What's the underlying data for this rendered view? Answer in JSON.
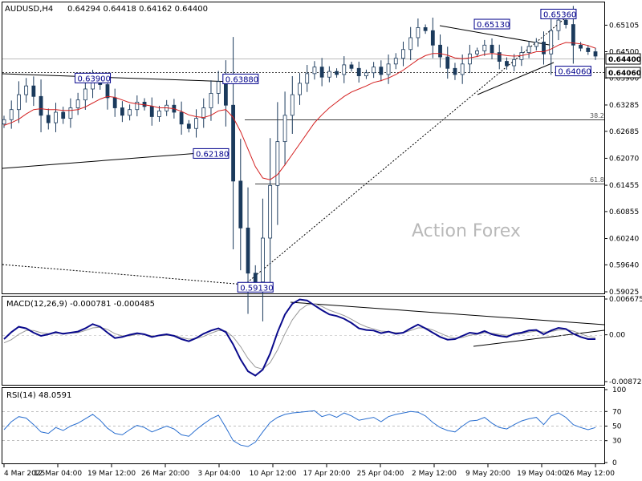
{
  "header": {
    "symbol": "AUDUSD,H4",
    "ohlc": "0.64294 0.64418 0.64162 0.64400"
  },
  "watermark": "Action Forex",
  "colors": {
    "candle": "#1b3a5c",
    "ma": "#d42020",
    "macd_main": "#0a0a8c",
    "macd_signal": "#9a9a9a",
    "rsi": "#2a6fd0",
    "trendline": "#000000",
    "fib": "#000000",
    "label_border": "#00008b"
  },
  "chart_data": [
    {
      "type": "line",
      "panel": "price",
      "title": "AUDUSD,H4",
      "ylim": [
        0.59025,
        0.6535
      ],
      "yticks": [
        "0.65105",
        "0.64500",
        "0.63900",
        "0.63285",
        "0.62685",
        "0.62070",
        "0.61455",
        "0.60855",
        "0.60240",
        "0.59640",
        "0.59025"
      ],
      "xticks": [
        "4 Mar 2025",
        "12 Mar 04:00",
        "19 Mar 12:00",
        "26 Mar 20:00",
        "3 Apr 04:00",
        "10 Apr 12:00",
        "17 Apr 20:00",
        "25 Apr 04:00",
        "2 May 12:00",
        "9 May 20:00",
        "19 May 04:00",
        "26 May 12:00"
      ],
      "series": [
        {
          "role": "close",
          "values": [
            0.6295,
            0.6318,
            0.6352,
            0.6372,
            0.6348,
            0.6305,
            0.6288,
            0.6312,
            0.6298,
            0.6322,
            0.634,
            0.6365,
            0.6388,
            0.6375,
            0.6345,
            0.6322,
            0.6305,
            0.6318,
            0.6335,
            0.6325,
            0.6302,
            0.6315,
            0.6328,
            0.6312,
            0.6285,
            0.6275,
            0.6298,
            0.6322,
            0.6355,
            0.6382,
            0.6328,
            0.6155,
            0.6048,
            0.5945,
            0.5925,
            0.6025,
            0.6145,
            0.6245,
            0.6305,
            0.6352,
            0.6378,
            0.64,
            0.6415,
            0.6392,
            0.6405,
            0.6398,
            0.642,
            0.6412,
            0.6395,
            0.6402,
            0.6415,
            0.6398,
            0.6422,
            0.6435,
            0.6455,
            0.6482,
            0.6505,
            0.6498,
            0.6465,
            0.6438,
            0.6412,
            0.6398,
            0.6422,
            0.6445,
            0.6452,
            0.6465,
            0.6448,
            0.6428,
            0.6418,
            0.6432,
            0.6448,
            0.6462,
            0.6472,
            0.6445,
            0.6498,
            0.6522,
            0.6512,
            0.6465,
            0.6458,
            0.645,
            0.644
          ]
        },
        {
          "role": "moving-average",
          "values": [
            0.6282,
            0.6288,
            0.6296,
            0.6308,
            0.6318,
            0.632,
            0.6318,
            0.6318,
            0.6316,
            0.6316,
            0.6318,
            0.6324,
            0.6333,
            0.6342,
            0.6348,
            0.6346,
            0.634,
            0.6334,
            0.6331,
            0.6329,
            0.6326,
            0.6322,
            0.6322,
            0.632,
            0.6314,
            0.6306,
            0.6302,
            0.63,
            0.6305,
            0.6315,
            0.6318,
            0.63,
            0.6268,
            0.6228,
            0.6188,
            0.6162,
            0.6158,
            0.617,
            0.6192,
            0.6216,
            0.624,
            0.6264,
            0.6288,
            0.6306,
            0.6322,
            0.6335,
            0.6348,
            0.6358,
            0.6365,
            0.6372,
            0.638,
            0.6384,
            0.639,
            0.6398,
            0.6408,
            0.642,
            0.6432,
            0.6441,
            0.6446,
            0.6446,
            0.6442,
            0.6436,
            0.6434,
            0.6436,
            0.6439,
            0.6444,
            0.6446,
            0.6444,
            0.6441,
            0.644,
            0.6441,
            0.6445,
            0.645,
            0.645,
            0.6456,
            0.6465,
            0.6471,
            0.647,
            0.6468,
            0.6464,
            0.6458
          ]
        }
      ],
      "price_labels": [
        "0.63900",
        "0.63880",
        "0.62180",
        "0.59130",
        "0.65130",
        "0.65360",
        "0.64060"
      ],
      "fib_levels": [
        {
          "label": "38.2",
          "value": 0.6295
        },
        {
          "label": "61.8",
          "value": 0.6154
        }
      ],
      "current_price": "0.64400",
      "marked_price": "0.64060"
    },
    {
      "type": "line",
      "panel": "macd",
      "title": "MACD(12,26,9) -0.000781 -0.000485",
      "ylim": [
        -0.008724,
        0.006675
      ],
      "yticks": [
        "0.006675",
        "0.00",
        "-0.008724"
      ],
      "series": [
        {
          "role": "macd",
          "values": [
            -0.0008,
            0.0005,
            0.0015,
            0.0012,
            0.0004,
            -0.0002,
            0.0001,
            0.0005,
            0.0002,
            0.0004,
            0.0006,
            0.0012,
            0.002,
            0.0015,
            0.0004,
            -0.0006,
            -0.0004,
            0.0,
            0.0003,
            0.0001,
            -0.0004,
            -0.0001,
            0.0001,
            -0.0002,
            -0.0008,
            -0.0012,
            -0.0006,
            0.0002,
            0.0008,
            0.0012,
            0.0005,
            -0.0018,
            -0.0046,
            -0.0068,
            -0.0076,
            -0.0065,
            -0.0035,
            0.0005,
            0.0038,
            0.0058,
            0.0066,
            0.0064,
            0.0055,
            0.0046,
            0.0038,
            0.0035,
            0.003,
            0.0022,
            0.0012,
            0.0009,
            0.0008,
            0.0003,
            0.0006,
            0.0002,
            0.0004,
            0.0012,
            0.0019,
            0.0012,
            0.0004,
            -0.0004,
            -0.0009,
            -0.0008,
            -0.0002,
            0.0004,
            0.0002,
            0.0007,
            0.0001,
            -0.0002,
            -0.0004,
            0.0002,
            0.0004,
            0.0008,
            0.0009,
            0.0001,
            0.0008,
            0.0013,
            0.0011,
            0.0002,
            -0.0004,
            -0.0008,
            -0.0008
          ]
        },
        {
          "role": "signal",
          "values": [
            -0.0015,
            -0.0009,
            0.0001,
            0.0008,
            0.0008,
            0.0004,
            0.0002,
            0.0003,
            0.0003,
            0.0003,
            0.0004,
            0.0008,
            0.0013,
            0.0014,
            0.001,
            0.0002,
            -0.0002,
            -0.0002,
            0.0001,
            0.0001,
            -0.0002,
            -0.0002,
            -0.0001,
            -0.0001,
            -0.0005,
            -0.0008,
            -0.0007,
            -0.0003,
            0.0003,
            0.0008,
            0.0007,
            -0.0004,
            -0.0022,
            -0.0044,
            -0.006,
            -0.0064,
            -0.0052,
            -0.0028,
            0.0002,
            0.0028,
            0.0046,
            0.0056,
            0.0058,
            0.0053,
            0.0046,
            0.0041,
            0.0036,
            0.0029,
            0.0021,
            0.0015,
            0.0011,
            0.0007,
            0.0006,
            0.0004,
            0.0004,
            0.0008,
            0.0013,
            0.0013,
            0.0009,
            0.0003,
            -0.0003,
            -0.0006,
            -0.0005,
            -0.0001,
            0.0001,
            0.0004,
            0.0003,
            0.0001,
            -0.0001,
            0.0,
            0.0002,
            0.0005,
            0.0007,
            0.0005,
            0.0006,
            0.0009,
            0.001,
            0.0007,
            0.0002,
            -0.0003,
            -0.0005
          ]
        }
      ]
    },
    {
      "type": "line",
      "panel": "rsi",
      "title": "RSI(14) 48.0591",
      "ylim": [
        0,
        100
      ],
      "yticks": [
        "100",
        "70",
        "50",
        "30",
        "0"
      ],
      "levels": [
        70,
        50,
        30
      ],
      "series": [
        {
          "role": "rsi",
          "values": [
            45,
            56,
            63,
            61,
            52,
            42,
            40,
            48,
            44,
            50,
            54,
            60,
            66,
            58,
            47,
            40,
            38,
            45,
            51,
            48,
            42,
            46,
            50,
            46,
            38,
            36,
            45,
            53,
            60,
            65,
            48,
            30,
            24,
            22,
            28,
            42,
            55,
            62,
            66,
            68,
            69,
            70,
            71,
            63,
            66,
            62,
            68,
            64,
            58,
            60,
            62,
            56,
            63,
            66,
            68,
            70,
            69,
            64,
            55,
            48,
            44,
            42,
            50,
            57,
            58,
            62,
            54,
            48,
            46,
            52,
            57,
            60,
            62,
            52,
            64,
            68,
            62,
            52,
            48,
            45,
            48
          ]
        }
      ]
    }
  ]
}
